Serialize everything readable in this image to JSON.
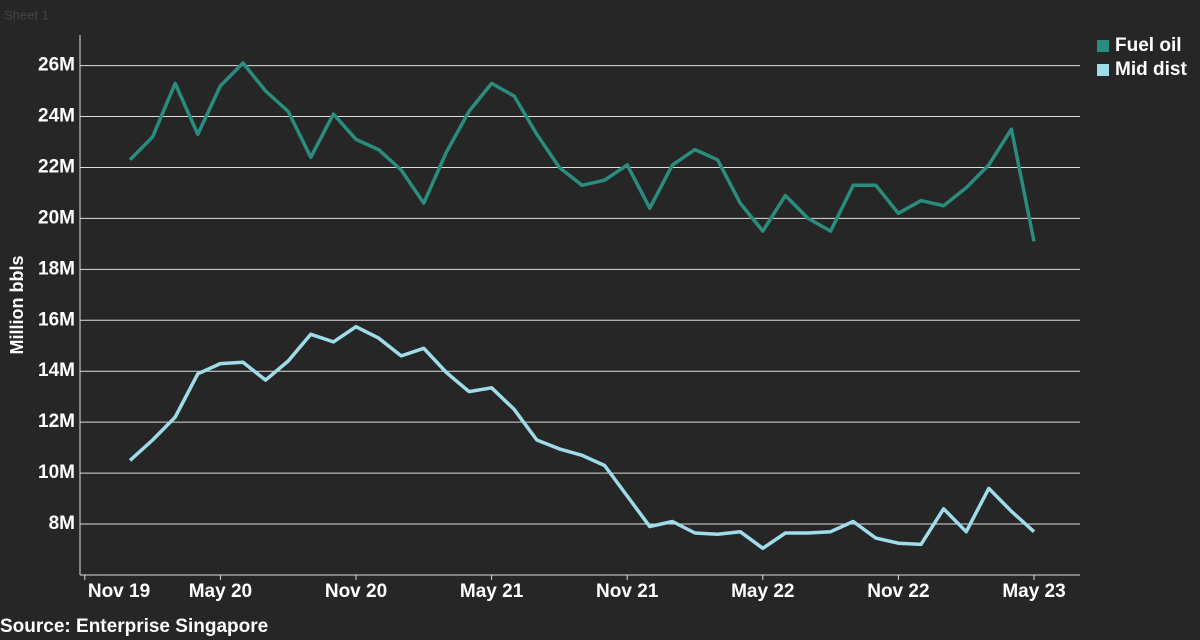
{
  "chart_data": {
    "type": "line",
    "watermark": "Sheet 1",
    "y_label": "Million bbls",
    "source": "Source: Enterprise Singapore",
    "categories": [
      "Nov 19",
      null,
      null,
      null,
      null,
      null,
      "May 20",
      null,
      null,
      null,
      null,
      null,
      "Nov 20",
      null,
      null,
      null,
      null,
      null,
      "May 21",
      null,
      null,
      null,
      null,
      null,
      "Nov 21",
      null,
      null,
      null,
      null,
      null,
      "May 22",
      null,
      null,
      null,
      null,
      null,
      "Nov 22",
      null,
      null,
      null,
      null,
      null,
      "May 23"
    ],
    "series": [
      {
        "name": "Fuel oil",
        "color": "#2a8c7f",
        "values": [
          null,
          null,
          22.3,
          23.2,
          25.3,
          23.3,
          25.2,
          26.1,
          25.0,
          24.2,
          22.4,
          24.1,
          23.1,
          22.7,
          21.9,
          20.6,
          22.6,
          24.2,
          25.3,
          24.8,
          23.3,
          22.0,
          21.3,
          21.5,
          22.1,
          20.4,
          22.1,
          22.7,
          22.3,
          20.6,
          19.5,
          20.9,
          20.0,
          19.5,
          21.3,
          21.3,
          20.2,
          20.7,
          20.5,
          21.2,
          22.1,
          23.5,
          19.1
        ]
      },
      {
        "name": "Mid dist",
        "color": "#9fdcea",
        "values": [
          null,
          null,
          10.5,
          11.3,
          12.2,
          13.9,
          14.3,
          14.35,
          13.65,
          14.4,
          15.45,
          15.15,
          15.75,
          15.3,
          14.6,
          14.9,
          13.95,
          13.2,
          13.35,
          12.5,
          11.3,
          10.95,
          10.7,
          10.3,
          9.1,
          7.9,
          8.1,
          7.65,
          7.6,
          7.7,
          7.05,
          7.65,
          7.65,
          7.7,
          8.1,
          7.45,
          7.25,
          7.2,
          8.6,
          7.7,
          9.4,
          8.5,
          7.7
        ]
      }
    ],
    "ylim": [
      6,
      27.2
    ],
    "yticks": [
      {
        "value": 8,
        "label": "8M"
      },
      {
        "value": 10,
        "label": "10M"
      },
      {
        "value": 12,
        "label": "12M"
      },
      {
        "value": 14,
        "label": "14M"
      },
      {
        "value": 16,
        "label": "16M"
      },
      {
        "value": 18,
        "label": "18M"
      },
      {
        "value": 20,
        "label": "20M"
      },
      {
        "value": 22,
        "label": "22M"
      },
      {
        "value": 24,
        "label": "24M"
      },
      {
        "value": 26,
        "label": "26M"
      }
    ],
    "grid": true,
    "legend": "top-right"
  }
}
